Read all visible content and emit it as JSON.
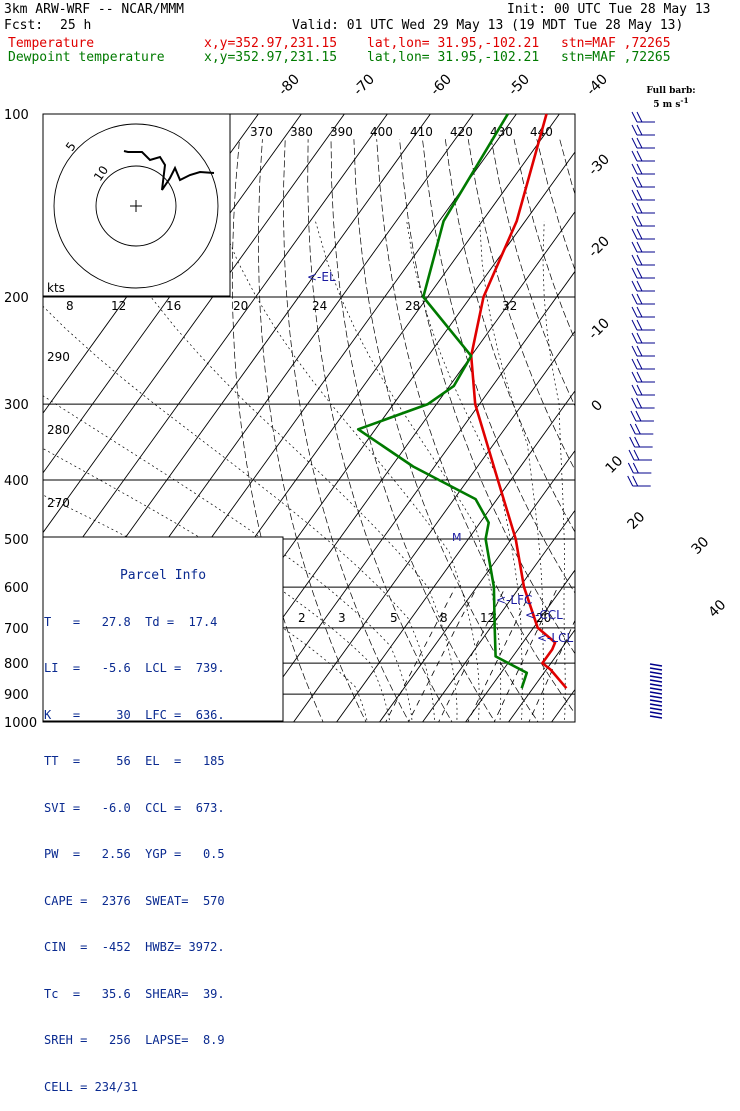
{
  "header": {
    "model": "3km ARW-WRF -- NCAR/MMM",
    "init": "Init: 00 UTC Tue 28 May 13",
    "fcst_label": "Fcst:",
    "fcst_value": "25 h",
    "valid": "Valid: 01 UTC Wed 29 May 13 (19 MDT Tue 28 May 13)",
    "temp_line": {
      "name": "Temperature",
      "xy": "x,y=352.97,231.15",
      "latlon": "lat,lon= 31.95,-102.21",
      "stn": "stn=MAF ,72265"
    },
    "dew_line": {
      "name": "Dewpoint temperature",
      "xy": "x,y=352.97,231.15",
      "latlon": "lat,lon= 31.95,-102.21",
      "stn": "stn=MAF ,72265"
    }
  },
  "barb_legend": {
    "line1": "Full barb:",
    "line2": "5 m s",
    "sup": "-1"
  },
  "hodograph": {
    "units": "kts",
    "ring_labels": [
      "5",
      "10"
    ]
  },
  "parcel_info": {
    "title": "Parcel Info",
    "rows": [
      "T   =   27.8  Td =  17.4",
      "LI  =   -5.6  LCL =  739.",
      "K   =     30  LFC =  636.",
      "TT  =     56  EL  =   185",
      "SVI =   -6.0  CCL =  673.",
      "PW  =   2.56  YGP =   0.5",
      "CAPE =  2376  SWEAT=  570",
      "CIN  =  -452  HWBZ= 3972.",
      "Tc  =   35.6  SHEAR=  39.",
      "SREH =   256  LAPSE=  8.9",
      "CELL = 234/31"
    ]
  },
  "chart_data": {
    "type": "line",
    "subtype": "skew-T log-P sounding",
    "pressure_ticks": [
      100,
      200,
      300,
      400,
      500,
      600,
      700,
      800,
      900,
      1000
    ],
    "isotherm_labels": [
      -80,
      -70,
      -60,
      -50,
      -40,
      -30,
      -20,
      -10,
      0,
      10,
      20,
      30,
      40
    ],
    "theta_labels": [
      370,
      380,
      390,
      400,
      410,
      420,
      430,
      440
    ],
    "theta_e_labels": [
      290,
      280,
      270
    ],
    "mixing_ratio_labels_upper": [
      8,
      12,
      16,
      20,
      24,
      28,
      32
    ],
    "mixing_ratio_labels_lower": [
      2,
      3,
      5,
      8,
      12,
      20
    ],
    "level_markers": [
      "<-EL",
      "<-LFC",
      "<-CCL",
      "<-LCL"
    ],
    "series": [
      {
        "name": "Temperature",
        "color": "#e00000",
        "p": [
          100,
          150,
          200,
          250,
          300,
          400,
          500,
          600,
          700,
          740,
          760,
          800,
          820,
          880
        ],
        "t": [
          -73,
          -62,
          -57,
          -50,
          -41,
          -23,
          -9,
          1,
          11,
          17.5,
          18,
          18,
          21,
          27.8
        ]
      },
      {
        "name": "Dewpoint temperature",
        "color": "#007a00",
        "p": [
          100,
          150,
          200,
          250,
          280,
          300,
          330,
          380,
          430,
          470,
          500,
          600,
          700,
          780,
          830,
          880
        ],
        "td": [
          -82,
          -79,
          -71,
          -50,
          -49,
          -52,
          -64,
          -45,
          -25,
          -18,
          -16,
          -6,
          1,
          6,
          16,
          17.4
        ]
      }
    ],
    "wind_profile": {
      "barb_color": "#00008b",
      "units": "m s-1",
      "full_barb": 5
    }
  }
}
